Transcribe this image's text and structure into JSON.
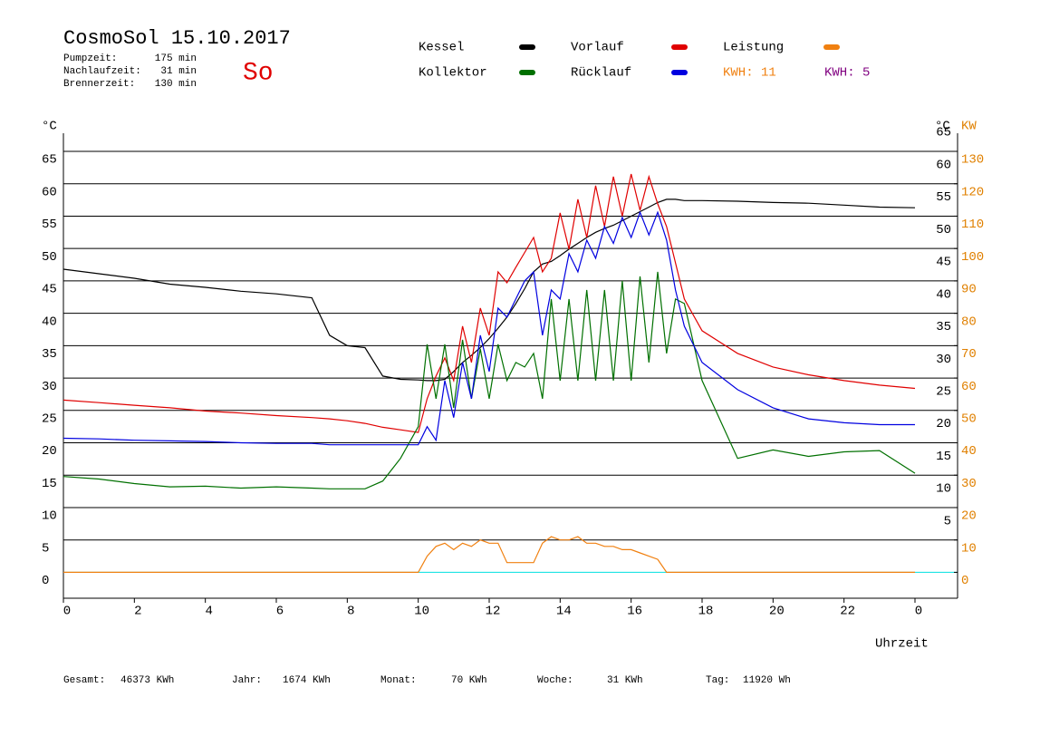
{
  "header": {
    "title": "CosmoSol 15.10.2017",
    "day": "So",
    "info": [
      {
        "label": "Pumpzeit:",
        "value": "175 min"
      },
      {
        "label": "Nachlaufzeit:",
        "value": "31 min"
      },
      {
        "label": "Brennerzeit:",
        "value": "130 min"
      }
    ]
  },
  "chart_data": {
    "type": "line",
    "y_label": "°C",
    "y_label_right": "°C",
    "y2_label": "KW",
    "x_label": "Uhrzeit",
    "x": [
      0,
      1,
      2,
      3,
      4,
      5,
      6,
      7,
      7.5,
      8,
      8.5,
      9,
      9.5,
      10,
      10.25,
      10.5,
      10.75,
      11,
      11.25,
      11.5,
      11.75,
      12,
      12.25,
      12.5,
      12.75,
      13,
      13.25,
      13.5,
      13.75,
      14,
      14.25,
      14.5,
      14.75,
      15,
      15.25,
      15.5,
      15.75,
      16,
      16.25,
      16.5,
      16.75,
      17,
      17.25,
      17.5,
      18,
      19,
      20,
      21,
      22,
      23,
      24
    ],
    "series": [
      {
        "name": "Kessel",
        "color": "#000000",
        "values": [
          46.8,
          46.1,
          45.4,
          44.5,
          44,
          43.4,
          43,
          42.4,
          36.6,
          35,
          34.7,
          30.3,
          29.8,
          29.7,
          29.6,
          29.6,
          29.8,
          31,
          32.4,
          33.5,
          34.7,
          36.1,
          37.7,
          39.4,
          41.5,
          43.8,
          46.4,
          47.6,
          48,
          48.9,
          49.9,
          50.8,
          51.7,
          52.5,
          53.1,
          53.6,
          54.3,
          55,
          55.7,
          56.4,
          57.1,
          57.6,
          57.6,
          57.4,
          57.4,
          57.3,
          57.1,
          57,
          56.7,
          56.4,
          56.3
        ]
      },
      {
        "name": "Vorlauf",
        "color": "#e00000",
        "values": [
          26.6,
          26.2,
          25.8,
          25.4,
          24.9,
          24.6,
          24.2,
          23.9,
          23.7,
          23.4,
          23,
          22.4,
          22,
          21.6,
          26.8,
          30.3,
          33.1,
          29.6,
          38,
          32.4,
          40.8,
          36.6,
          46.4,
          44.7,
          47.1,
          49.4,
          51.7,
          46.4,
          48.5,
          55.5,
          49.9,
          57.6,
          51.7,
          59.7,
          53.4,
          61.1,
          55,
          61.5,
          55.9,
          61.1,
          56.9,
          53.4,
          47.8,
          42.2,
          37.3,
          33.8,
          31.7,
          30.5,
          29.6,
          28.9,
          28.4
        ]
      },
      {
        "name": "Leistung",
        "color": "#f08010",
        "axis": "y2",
        "values": [
          0,
          0,
          0,
          0,
          0,
          0,
          0,
          0,
          0,
          0,
          0,
          0,
          0,
          0,
          5,
          8,
          9,
          7,
          9,
          8,
          10,
          9,
          9,
          3,
          3,
          3,
          3,
          9,
          11,
          10,
          10,
          11,
          9,
          9,
          8,
          8,
          7,
          7,
          6,
          5,
          4,
          0,
          0,
          0,
          0,
          0,
          0,
          0,
          0,
          0,
          0
        ]
      },
      {
        "name": "Kollektor",
        "color": "#007000",
        "values": [
          14.8,
          14.4,
          13.7,
          13.2,
          13.3,
          13,
          13.2,
          13,
          12.9,
          12.9,
          12.9,
          14.1,
          17.6,
          22.5,
          35.2,
          26.8,
          35.2,
          25.4,
          35.9,
          26.8,
          34.5,
          26.8,
          35.2,
          29.6,
          32.4,
          31.7,
          33.8,
          26.8,
          42.2,
          29.6,
          42.2,
          29.6,
          43.6,
          29.6,
          43.6,
          29.6,
          45,
          29.6,
          45.7,
          32.4,
          46.4,
          33.8,
          42.2,
          41.5,
          29.6,
          17.6,
          18.9,
          17.9,
          18.6,
          18.8,
          15.3
        ]
      },
      {
        "name": "Rücklauf",
        "color": "#0000e0",
        "values": [
          20.7,
          20.6,
          20.4,
          20.3,
          20.2,
          20,
          19.9,
          19.9,
          19.7,
          19.7,
          19.7,
          19.7,
          19.7,
          19.7,
          22.5,
          20.4,
          29.6,
          23.9,
          32.4,
          26.8,
          36.6,
          31,
          40.8,
          39.4,
          42.2,
          45,
          46.4,
          36.6,
          43.6,
          42.2,
          49.2,
          46.4,
          51.3,
          48.5,
          53.4,
          50.8,
          54.8,
          51.7,
          55.6,
          52.1,
          55.6,
          51.3,
          43.6,
          38,
          32.4,
          28.2,
          25.4,
          23.7,
          23.1,
          22.8,
          22.8
        ]
      }
    ],
    "kwh_labels": [
      {
        "text": "KWH: 11",
        "color": "#f08010"
      },
      {
        "text": "KWH: 5",
        "color": "#800080"
      }
    ],
    "xlim": [
      0,
      25.2
    ],
    "xticks": [
      0,
      2,
      4,
      6,
      8,
      10,
      12,
      14,
      16,
      18,
      20,
      22,
      {
        "value": 24,
        "label": "0"
      }
    ],
    "ylim": [
      -4,
      67.8
    ],
    "yticks": [
      0,
      5,
      10,
      15,
      20,
      25,
      30,
      35,
      40,
      45,
      50,
      55,
      60,
      65
    ],
    "yticks_right": [
      5,
      10,
      15,
      20,
      25,
      30,
      35,
      40,
      45,
      50,
      55,
      60,
      65
    ],
    "y2lim": [
      -8,
      135.6
    ],
    "y2ticks": [
      0,
      10,
      20,
      30,
      40,
      50,
      60,
      70,
      80,
      90,
      100,
      110,
      120,
      130
    ],
    "y2_color": "#e08000",
    "grid": true,
    "zero_line_color": "#00e0e0"
  },
  "footer": [
    {
      "label": "Gesamt:",
      "value": "46373 KWh"
    },
    {
      "label": "Jahr:",
      "value": "1674 KWh"
    },
    {
      "label": "Monat:",
      "value": "70 KWh"
    },
    {
      "label": "Woche:",
      "value": "31 KWh"
    },
    {
      "label": "Tag:",
      "value": "11920 Wh"
    }
  ]
}
